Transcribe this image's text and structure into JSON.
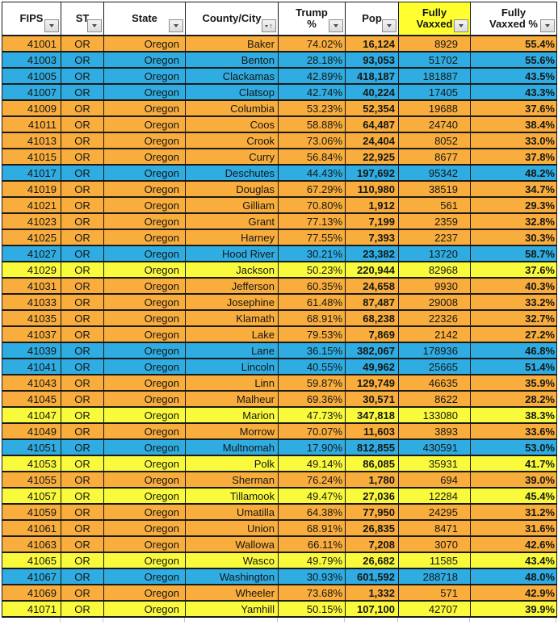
{
  "sheet": {
    "columns": [
      {
        "key": "fips",
        "label_lines": [
          "FIPS"
        ],
        "filter_icon": "dropdown-triangle"
      },
      {
        "key": "st",
        "label_lines": [
          "ST"
        ],
        "filter_icon": "dropdown-triangle"
      },
      {
        "key": "state",
        "label_lines": [
          "State"
        ],
        "filter_icon": "dropdown-triangle"
      },
      {
        "key": "county",
        "label_lines": [
          "County/City"
        ],
        "filter_icon": "dropdown-triangle-with-up-arrow",
        "sort": "asc",
        "sort_icon": "up-arrow"
      },
      {
        "key": "trump",
        "label_lines": [
          "Trump",
          "%"
        ],
        "filter_icon": "dropdown-triangle"
      },
      {
        "key": "pop",
        "label_lines": [
          "Pop"
        ],
        "filter_icon": "dropdown-triangle"
      },
      {
        "key": "vaxxed",
        "label_lines": [
          "Fully",
          "Vaxxed"
        ],
        "filter_icon": "dropdown-triangle",
        "header_bg": "#FFFF2F"
      },
      {
        "key": "vaxxed_pct",
        "label_lines": [
          "Fully",
          "Vaxxed %"
        ],
        "filter_icon": "dropdown-triangle"
      }
    ],
    "row_colors": {
      "orange": "#F9AD3C",
      "blue": "#2FACE1",
      "yellow": "#FAFA3D"
    },
    "rows": [
      {
        "fips": "41001",
        "st": "OR",
        "state": "Oregon",
        "county": "Baker",
        "trump": "74.02%",
        "pop": "16,124",
        "vaxxed": "8929",
        "vaxxed_pct": "55.4%",
        "color": "orange"
      },
      {
        "fips": "41003",
        "st": "OR",
        "state": "Oregon",
        "county": "Benton",
        "trump": "28.18%",
        "pop": "93,053",
        "vaxxed": "51702",
        "vaxxed_pct": "55.6%",
        "color": "blue"
      },
      {
        "fips": "41005",
        "st": "OR",
        "state": "Oregon",
        "county": "Clackamas",
        "trump": "42.89%",
        "pop": "418,187",
        "vaxxed": "181887",
        "vaxxed_pct": "43.5%",
        "color": "blue"
      },
      {
        "fips": "41007",
        "st": "OR",
        "state": "Oregon",
        "county": "Clatsop",
        "trump": "42.74%",
        "pop": "40,224",
        "vaxxed": "17405",
        "vaxxed_pct": "43.3%",
        "color": "blue"
      },
      {
        "fips": "41009",
        "st": "OR",
        "state": "Oregon",
        "county": "Columbia",
        "trump": "53.23%",
        "pop": "52,354",
        "vaxxed": "19688",
        "vaxxed_pct": "37.6%",
        "color": "orange"
      },
      {
        "fips": "41011",
        "st": "OR",
        "state": "Oregon",
        "county": "Coos",
        "trump": "58.88%",
        "pop": "64,487",
        "vaxxed": "24740",
        "vaxxed_pct": "38.4%",
        "color": "orange"
      },
      {
        "fips": "41013",
        "st": "OR",
        "state": "Oregon",
        "county": "Crook",
        "trump": "73.06%",
        "pop": "24,404",
        "vaxxed": "8052",
        "vaxxed_pct": "33.0%",
        "color": "orange"
      },
      {
        "fips": "41015",
        "st": "OR",
        "state": "Oregon",
        "county": "Curry",
        "trump": "56.84%",
        "pop": "22,925",
        "vaxxed": "8677",
        "vaxxed_pct": "37.8%",
        "color": "orange"
      },
      {
        "fips": "41017",
        "st": "OR",
        "state": "Oregon",
        "county": "Deschutes",
        "trump": "44.43%",
        "pop": "197,692",
        "vaxxed": "95342",
        "vaxxed_pct": "48.2%",
        "color": "blue"
      },
      {
        "fips": "41019",
        "st": "OR",
        "state": "Oregon",
        "county": "Douglas",
        "trump": "67.29%",
        "pop": "110,980",
        "vaxxed": "38519",
        "vaxxed_pct": "34.7%",
        "color": "orange"
      },
      {
        "fips": "41021",
        "st": "OR",
        "state": "Oregon",
        "county": "Gilliam",
        "trump": "70.80%",
        "pop": "1,912",
        "vaxxed": "561",
        "vaxxed_pct": "29.3%",
        "color": "orange"
      },
      {
        "fips": "41023",
        "st": "OR",
        "state": "Oregon",
        "county": "Grant",
        "trump": "77.13%",
        "pop": "7,199",
        "vaxxed": "2359",
        "vaxxed_pct": "32.8%",
        "color": "orange"
      },
      {
        "fips": "41025",
        "st": "OR",
        "state": "Oregon",
        "county": "Harney",
        "trump": "77.55%",
        "pop": "7,393",
        "vaxxed": "2237",
        "vaxxed_pct": "30.3%",
        "color": "orange"
      },
      {
        "fips": "41027",
        "st": "OR",
        "state": "Oregon",
        "county": "Hood River",
        "trump": "30.21%",
        "pop": "23,382",
        "vaxxed": "13720",
        "vaxxed_pct": "58.7%",
        "color": "blue"
      },
      {
        "fips": "41029",
        "st": "OR",
        "state": "Oregon",
        "county": "Jackson",
        "trump": "50.23%",
        "pop": "220,944",
        "vaxxed": "82968",
        "vaxxed_pct": "37.6%",
        "color": "yellow"
      },
      {
        "fips": "41031",
        "st": "OR",
        "state": "Oregon",
        "county": "Jefferson",
        "trump": "60.35%",
        "pop": "24,658",
        "vaxxed": "9930",
        "vaxxed_pct": "40.3%",
        "color": "orange"
      },
      {
        "fips": "41033",
        "st": "OR",
        "state": "Oregon",
        "county": "Josephine",
        "trump": "61.48%",
        "pop": "87,487",
        "vaxxed": "29008",
        "vaxxed_pct": "33.2%",
        "color": "orange"
      },
      {
        "fips": "41035",
        "st": "OR",
        "state": "Oregon",
        "county": "Klamath",
        "trump": "68.91%",
        "pop": "68,238",
        "vaxxed": "22326",
        "vaxxed_pct": "32.7%",
        "color": "orange"
      },
      {
        "fips": "41037",
        "st": "OR",
        "state": "Oregon",
        "county": "Lake",
        "trump": "79.53%",
        "pop": "7,869",
        "vaxxed": "2142",
        "vaxxed_pct": "27.2%",
        "color": "orange"
      },
      {
        "fips": "41039",
        "st": "OR",
        "state": "Oregon",
        "county": "Lane",
        "trump": "36.15%",
        "pop": "382,067",
        "vaxxed": "178936",
        "vaxxed_pct": "46.8%",
        "color": "blue"
      },
      {
        "fips": "41041",
        "st": "OR",
        "state": "Oregon",
        "county": "Lincoln",
        "trump": "40.55%",
        "pop": "49,962",
        "vaxxed": "25665",
        "vaxxed_pct": "51.4%",
        "color": "blue"
      },
      {
        "fips": "41043",
        "st": "OR",
        "state": "Oregon",
        "county": "Linn",
        "trump": "59.87%",
        "pop": "129,749",
        "vaxxed": "46635",
        "vaxxed_pct": "35.9%",
        "color": "orange"
      },
      {
        "fips": "41045",
        "st": "OR",
        "state": "Oregon",
        "county": "Malheur",
        "trump": "69.36%",
        "pop": "30,571",
        "vaxxed": "8622",
        "vaxxed_pct": "28.2%",
        "color": "orange"
      },
      {
        "fips": "41047",
        "st": "OR",
        "state": "Oregon",
        "county": "Marion",
        "trump": "47.73%",
        "pop": "347,818",
        "vaxxed": "133080",
        "vaxxed_pct": "38.3%",
        "color": "yellow"
      },
      {
        "fips": "41049",
        "st": "OR",
        "state": "Oregon",
        "county": "Morrow",
        "trump": "70.07%",
        "pop": "11,603",
        "vaxxed": "3893",
        "vaxxed_pct": "33.6%",
        "color": "orange"
      },
      {
        "fips": "41051",
        "st": "OR",
        "state": "Oregon",
        "county": "Multnomah",
        "trump": "17.90%",
        "pop": "812,855",
        "vaxxed": "430591",
        "vaxxed_pct": "53.0%",
        "color": "blue"
      },
      {
        "fips": "41053",
        "st": "OR",
        "state": "Oregon",
        "county": "Polk",
        "trump": "49.14%",
        "pop": "86,085",
        "vaxxed": "35931",
        "vaxxed_pct": "41.7%",
        "color": "yellow"
      },
      {
        "fips": "41055",
        "st": "OR",
        "state": "Oregon",
        "county": "Sherman",
        "trump": "76.24%",
        "pop": "1,780",
        "vaxxed": "694",
        "vaxxed_pct": "39.0%",
        "color": "orange"
      },
      {
        "fips": "41057",
        "st": "OR",
        "state": "Oregon",
        "county": "Tillamook",
        "trump": "49.47%",
        "pop": "27,036",
        "vaxxed": "12284",
        "vaxxed_pct": "45.4%",
        "color": "yellow"
      },
      {
        "fips": "41059",
        "st": "OR",
        "state": "Oregon",
        "county": "Umatilla",
        "trump": "64.38%",
        "pop": "77,950",
        "vaxxed": "24295",
        "vaxxed_pct": "31.2%",
        "color": "orange"
      },
      {
        "fips": "41061",
        "st": "OR",
        "state": "Oregon",
        "county": "Union",
        "trump": "68.91%",
        "pop": "26,835",
        "vaxxed": "8471",
        "vaxxed_pct": "31.6%",
        "color": "orange"
      },
      {
        "fips": "41063",
        "st": "OR",
        "state": "Oregon",
        "county": "Wallowa",
        "trump": "66.11%",
        "pop": "7,208",
        "vaxxed": "3070",
        "vaxxed_pct": "42.6%",
        "color": "orange"
      },
      {
        "fips": "41065",
        "st": "OR",
        "state": "Oregon",
        "county": "Wasco",
        "trump": "49.79%",
        "pop": "26,682",
        "vaxxed": "11585",
        "vaxxed_pct": "43.4%",
        "color": "yellow"
      },
      {
        "fips": "41067",
        "st": "OR",
        "state": "Oregon",
        "county": "Washington",
        "trump": "30.93%",
        "pop": "601,592",
        "vaxxed": "288718",
        "vaxxed_pct": "48.0%",
        "color": "blue"
      },
      {
        "fips": "41069",
        "st": "OR",
        "state": "Oregon",
        "county": "Wheeler",
        "trump": "73.68%",
        "pop": "1,332",
        "vaxxed": "571",
        "vaxxed_pct": "42.9%",
        "color": "orange"
      },
      {
        "fips": "41071",
        "st": "OR",
        "state": "Oregon",
        "county": "Yamhill",
        "trump": "50.15%",
        "pop": "107,100",
        "vaxxed": "42707",
        "vaxxed_pct": "39.9%",
        "color": "yellow"
      }
    ]
  }
}
